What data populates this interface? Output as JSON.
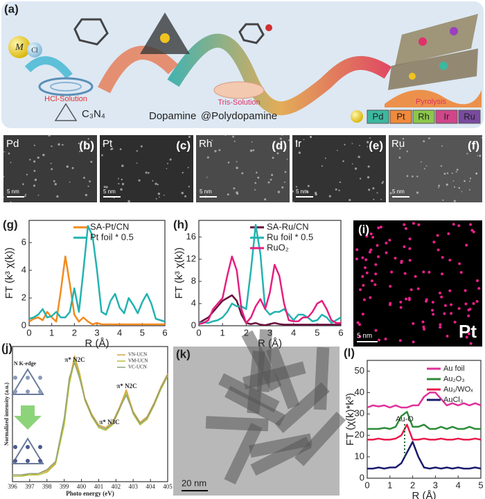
{
  "figure": {
    "a": {
      "label": "(a)",
      "metal": "M",
      "chloride": "Cl",
      "hcl": "HCl-Solution",
      "c3n4": "C₃N₄",
      "dopamine": "Dopamine",
      "tris": "Tris-Solution",
      "polydopamine": "@Polydopamine",
      "pyrolysis": "Pyrolysis",
      "metals": [
        "Pd",
        "Pt",
        "Rh",
        "Ir",
        "Ru"
      ]
    },
    "micrographs": [
      {
        "label": "(b)",
        "element": "Pd",
        "scale": "5 nm"
      },
      {
        "label": "(c)",
        "element": "Pt",
        "scale": "5 nm"
      },
      {
        "label": "(d)",
        "element": "Rh",
        "scale": "5 nm"
      },
      {
        "label": "(e)",
        "element": "Ir",
        "scale": "5 nm"
      },
      {
        "label": "(f)",
        "element": "Ru",
        "scale": "5 nm"
      }
    ],
    "i": {
      "label": "(i)",
      "element": "Pt",
      "scale": "5 nm"
    },
    "k": {
      "label": "(k)",
      "scale": "20 nm"
    }
  },
  "chart_data": [
    {
      "type": "line",
      "panel_label": "(g)",
      "x_label": "R (Å)",
      "y_label": "FT (k³ χ(k))",
      "x": [
        0,
        0.2,
        0.4,
        0.6,
        0.8,
        1.0,
        1.2,
        1.4,
        1.6,
        1.8,
        2.0,
        2.2,
        2.4,
        2.6,
        2.8,
        3.0,
        3.2,
        3.4,
        3.6,
        3.8,
        4.0,
        4.2,
        4.4,
        4.6,
        4.8,
        5.0,
        5.2,
        5.4,
        5.6,
        5.8,
        6.0
      ],
      "series": [
        {
          "name": "SA-Pt/CN",
          "color": "#f28a1e",
          "values": [
            0.3,
            0.5,
            0.6,
            0.4,
            1.0,
            0.6,
            0.3,
            2.5,
            5.0,
            3.0,
            0.8,
            0.3,
            0.6,
            0.3,
            0.1,
            0.2,
            0.1,
            0.1,
            0.1,
            0.1,
            0.1,
            0.1,
            0.1,
            0.1,
            0.1,
            0.1,
            0.1,
            0.1,
            0.1,
            0.1,
            0.1
          ]
        },
        {
          "name": "Pt foil * 0.5",
          "color": "#22b3b0",
          "values": [
            0.5,
            0.6,
            0.8,
            1.2,
            0.6,
            0.7,
            1.0,
            0.6,
            0.6,
            1.0,
            2.7,
            1.0,
            4.0,
            7.2,
            6.5,
            4.0,
            1.0,
            0.8,
            1.8,
            2.3,
            1.3,
            0.9,
            2.0,
            1.5,
            0.9,
            1.7,
            2.3,
            1.6,
            0.5,
            0.4,
            0.3
          ]
        }
      ],
      "xlim": [
        0,
        6
      ],
      "xticks": [
        0,
        1,
        2,
        3,
        4,
        5,
        6
      ],
      "ylim": [
        0,
        7.6
      ],
      "yticks": [
        0,
        2,
        4,
        6
      ]
    },
    {
      "type": "line",
      "panel_label": "(h)",
      "x_label": "R (Å)",
      "y_label": "FT (k³ χ(k))",
      "x": [
        0,
        0.2,
        0.4,
        0.6,
        0.8,
        1.0,
        1.2,
        1.4,
        1.6,
        1.8,
        2.0,
        2.2,
        2.4,
        2.6,
        2.8,
        3.0,
        3.2,
        3.4,
        3.6,
        3.8,
        4.0,
        4.2,
        4.4,
        4.6,
        4.8,
        5.0,
        5.2,
        5.4,
        5.6,
        5.8,
        6.0
      ],
      "series": [
        {
          "name": "SA-Ru/CN",
          "color": "#6b0f3e",
          "values": [
            0.5,
            1.0,
            1.5,
            2.5,
            3.5,
            4.5,
            5.0,
            5.5,
            4.5,
            2.0,
            0.5,
            0.3,
            0.5,
            0.2,
            0.1,
            0.3,
            0.5,
            0.3,
            0.2,
            0.2,
            0.2,
            0.2,
            0.2,
            0.2,
            0.2,
            0.2,
            0.2,
            0.2,
            0.2,
            0.2,
            0.2
          ]
        },
        {
          "name": "Ru foil * 0.5",
          "color": "#22b3b0",
          "values": [
            0.5,
            0.6,
            0.5,
            0.8,
            1.0,
            1.5,
            2.5,
            4.0,
            3.5,
            3.5,
            3.0,
            10,
            18.2,
            13,
            3.0,
            2.0,
            2.5,
            2.5,
            3.0,
            2.0,
            1.0,
            2.0,
            2.0,
            1.5,
            0.8,
            1.0,
            2.0,
            1.5,
            0.5,
            1.0,
            1.5
          ]
        },
        {
          "name": "RuO₂",
          "color": "#e51f7f",
          "values": [
            0.3,
            0.5,
            1.0,
            3.0,
            4.0,
            5.0,
            9.0,
            12.5,
            10,
            3,
            0.5,
            1.5,
            3.5,
            4.8,
            3.0,
            6.0,
            11.0,
            9.0,
            4.0,
            1.0,
            0.8,
            0.8,
            1.5,
            1.5,
            2.5,
            4.0,
            4.5,
            3.0,
            1.0,
            0.5,
            0.5
          ]
        }
      ],
      "xlim": [
        0,
        6
      ],
      "xticks": [
        0,
        1,
        2,
        3,
        4,
        5,
        6
      ],
      "ylim": [
        0,
        19
      ],
      "yticks": [
        0,
        4,
        8,
        12,
        16
      ]
    },
    {
      "type": "line",
      "panel_label": "(j)",
      "x_label": "Photo energy (eV)",
      "y_label": "Normalized intensity (a.u.)",
      "annotations": [
        "N K-edge",
        "π* N2C",
        "π* N3C",
        "π* N2C"
      ],
      "x": [
        396,
        396.5,
        397,
        397.5,
        398,
        398.5,
        399,
        399.3,
        399.6,
        399.9,
        400.2,
        400.6,
        401,
        401.4,
        401.8,
        402.2,
        402.6,
        403,
        403.4,
        403.8,
        404.2,
        404.6,
        405
      ],
      "series": [
        {
          "name": "VN-UCN",
          "color": "#d9a441",
          "values": [
            0.05,
            0.05,
            0.05,
            0.06,
            0.08,
            0.14,
            0.45,
            0.75,
            0.93,
            0.8,
            0.62,
            0.5,
            0.42,
            0.4,
            0.44,
            0.55,
            0.68,
            0.52,
            0.44,
            0.48,
            0.58,
            0.7,
            0.8
          ]
        },
        {
          "name": "VM-UCN",
          "color": "#b5c13a",
          "values": [
            0.04,
            0.04,
            0.05,
            0.05,
            0.07,
            0.13,
            0.42,
            0.72,
            0.9,
            0.78,
            0.6,
            0.48,
            0.4,
            0.38,
            0.42,
            0.53,
            0.66,
            0.5,
            0.42,
            0.46,
            0.56,
            0.68,
            0.78
          ]
        },
        {
          "name": "VC-UCN",
          "color": "#8fa27a",
          "values": [
            0.05,
            0.05,
            0.06,
            0.06,
            0.09,
            0.15,
            0.47,
            0.77,
            0.88,
            0.76,
            0.61,
            0.49,
            0.41,
            0.39,
            0.43,
            0.54,
            0.64,
            0.51,
            0.43,
            0.47,
            0.57,
            0.69,
            0.79
          ]
        }
      ],
      "xlim": [
        396,
        405
      ],
      "xticks": [
        396,
        397,
        398,
        399,
        400,
        401,
        402,
        403,
        404,
        405
      ],
      "ylim": [
        0,
        1
      ]
    },
    {
      "type": "line",
      "panel_label": "(l)",
      "x_label": "R (Å)",
      "y_label": "FT (χ(k)*k³)",
      "annotations": [
        "Au-O"
      ],
      "x": [
        0,
        0.25,
        0.5,
        0.75,
        1,
        1.25,
        1.5,
        1.75,
        2,
        2.25,
        2.5,
        2.75,
        3,
        3.25,
        3.5,
        3.75,
        4,
        4.25,
        4.5,
        4.75,
        5
      ],
      "series": [
        {
          "name": "Au foil",
          "color": "#e0309a",
          "values": [
            33,
            34,
            33.5,
            34,
            33,
            34,
            33,
            33,
            34,
            34,
            38,
            40,
            40,
            37,
            34,
            35,
            34,
            35,
            34,
            35,
            34
          ]
        },
        {
          "name": "Au₂O₃",
          "color": "#2e8b3a",
          "values": [
            23,
            23,
            23,
            23.5,
            23,
            24,
            29,
            31,
            24,
            24,
            25,
            23,
            23,
            24,
            23,
            24,
            23,
            23,
            24,
            23,
            23
          ]
        },
        {
          "name": "Au₁/WOₓ",
          "color": "#e8194a",
          "values": [
            18,
            18,
            18.5,
            18,
            18,
            18.5,
            20,
            25,
            18,
            18,
            18.5,
            18,
            18,
            18.5,
            18,
            18,
            18.5,
            18,
            18,
            18.5,
            18
          ]
        },
        {
          "name": "AuCl₃",
          "color": "#1a1a6e",
          "values": [
            4.5,
            4.5,
            5,
            4.5,
            5,
            5,
            7,
            12,
            17,
            10,
            5,
            4.5,
            5,
            4.5,
            5,
            4.5,
            5,
            4.5,
            4.5,
            5,
            4.5
          ]
        }
      ],
      "xlim": [
        0,
        5
      ],
      "xticks": [
        0,
        1,
        2,
        3,
        4,
        5
      ],
      "ylim": [
        0,
        55
      ],
      "yticks": [
        0,
        10,
        20,
        30,
        40,
        50
      ]
    }
  ]
}
